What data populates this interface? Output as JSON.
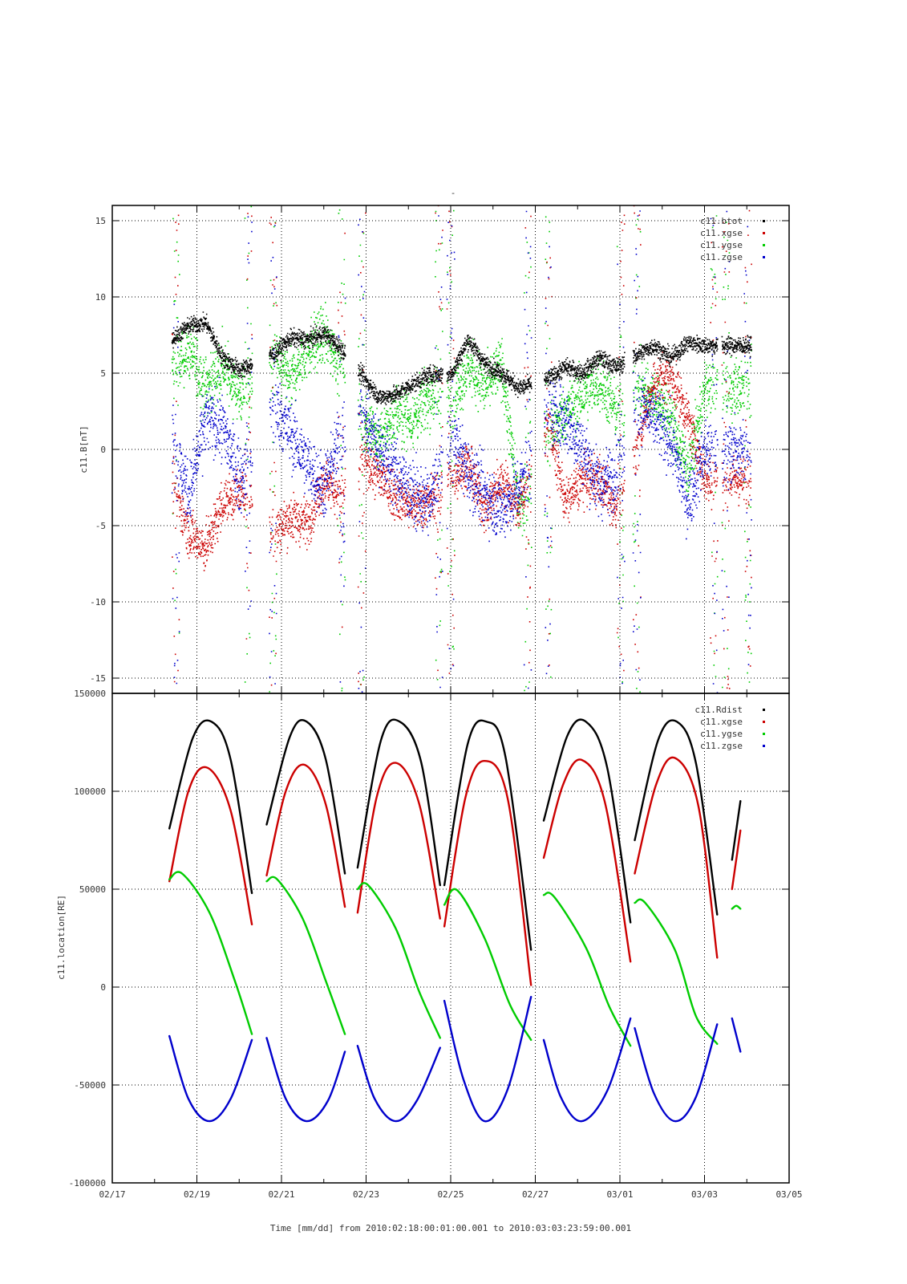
{
  "figure": {
    "title": "-",
    "xlabel": "Time [mm/dd]  from 2010:02:18:00:01:00.001  to  2010:03:03:23:59:00.001",
    "x_tick_labels": [
      "02/17",
      "02/19",
      "02/21",
      "02/23",
      "02/25",
      "02/27",
      "03/01",
      "03/03",
      "03/05"
    ]
  },
  "chart_data": [
    {
      "type": "scatter",
      "title": "-",
      "xlabel": "Time [mm/dd]",
      "ylabel": "c11.B[nT]",
      "x_unit": "day of 2010 from 02/17 00:00",
      "xlim": [
        "02/17",
        "03/05"
      ],
      "ylim": [
        -16,
        16
      ],
      "y_ticks": [
        -15,
        -10,
        -5,
        0,
        5,
        10,
        15
      ],
      "grid": true,
      "legend_position": "top-right",
      "orbit_segments": [
        [
          1.4,
          3.3
        ],
        [
          3.7,
          5.5
        ],
        [
          5.8,
          7.8
        ],
        [
          7.9,
          9.9
        ],
        [
          10.2,
          12.1
        ],
        [
          12.3,
          14.3
        ],
        [
          14.4,
          15.1
        ]
      ],
      "series": [
        {
          "name": "c11.btot",
          "color": "#000000",
          "x": [
            1.4,
            1.8,
            2.2,
            2.6,
            3.0,
            3.8,
            4.2,
            4.6,
            5.0,
            5.4,
            5.9,
            6.3,
            6.7,
            7.1,
            7.5,
            8.0,
            8.4,
            8.8,
            9.2,
            9.6,
            10.3,
            10.7,
            11.1,
            11.5,
            11.9,
            12.4,
            12.8,
            13.2,
            13.6,
            14.0
          ],
          "values": [
            7.2,
            8.1,
            8.3,
            6.0,
            5.2,
            6.2,
            7.3,
            7.2,
            7.6,
            6.6,
            4.8,
            3.4,
            3.6,
            4.3,
            4.9,
            4.9,
            7.2,
            5.6,
            5.0,
            4.0,
            4.6,
            5.4,
            5.0,
            6.0,
            5.4,
            6.2,
            6.8,
            6.0,
            7.0,
            6.8
          ]
        },
        {
          "name": "c11.xgse",
          "color": "#cc0000",
          "x": [
            1.4,
            1.8,
            2.2,
            2.6,
            3.0,
            3.8,
            4.2,
            4.6,
            5.0,
            5.4,
            5.9,
            6.3,
            6.7,
            7.1,
            7.5,
            8.0,
            8.4,
            8.8,
            9.2,
            9.6,
            10.3,
            10.7,
            11.1,
            11.5,
            11.9,
            12.4,
            12.8,
            13.2,
            13.6,
            14.0
          ],
          "values": [
            -2.0,
            -5.5,
            -6.5,
            -3.5,
            -2.8,
            -5.5,
            -4.5,
            -4.8,
            -2.0,
            -3.0,
            -0.5,
            -1.8,
            -3.0,
            -3.8,
            -3.4,
            -1.8,
            -1.0,
            -4.0,
            -2.0,
            -3.8,
            1.8,
            -3.5,
            -2.0,
            -2.0,
            -4.0,
            0.5,
            4.5,
            4.8,
            2.0,
            -2.0
          ]
        },
        {
          "name": "c11.ygse",
          "color": "#00cc00",
          "x": [
            1.4,
            1.8,
            2.2,
            2.6,
            3.0,
            3.8,
            4.2,
            4.6,
            5.0,
            5.4,
            5.9,
            6.3,
            6.7,
            7.1,
            7.5,
            8.0,
            8.4,
            8.8,
            9.2,
            9.6,
            10.3,
            10.7,
            11.1,
            11.5,
            11.9,
            12.4,
            12.8,
            13.2,
            13.6,
            14.0
          ],
          "values": [
            5.0,
            6.5,
            4.0,
            5.5,
            3.5,
            6.0,
            4.5,
            6.5,
            7.5,
            5.5,
            2.0,
            0.5,
            2.5,
            2.0,
            3.5,
            3.0,
            5.5,
            4.0,
            5.5,
            -4.0,
            1.0,
            2.5,
            3.5,
            4.5,
            2.5,
            4.0,
            3.5,
            2.0,
            -1.5,
            4.0
          ]
        },
        {
          "name": "c11.zgse",
          "color": "#0000cc",
          "x": [
            1.4,
            1.8,
            2.2,
            2.6,
            3.0,
            3.8,
            4.2,
            4.6,
            5.0,
            5.4,
            5.9,
            6.3,
            6.7,
            7.1,
            7.5,
            8.0,
            8.4,
            8.8,
            9.2,
            9.6,
            10.3,
            10.7,
            11.1,
            11.5,
            11.9,
            12.4,
            12.8,
            13.2,
            13.6,
            14.0
          ],
          "values": [
            0.5,
            -3.0,
            2.0,
            1.5,
            -2.0,
            3.0,
            1.0,
            -1.0,
            -2.5,
            1.0,
            2.5,
            0.0,
            -1.5,
            -3.0,
            -3.5,
            1.0,
            -1.5,
            -3.0,
            -4.0,
            -2.5,
            2.5,
            2.0,
            0.0,
            -2.5,
            -1.5,
            3.0,
            2.0,
            0.5,
            -3.5,
            0.0
          ]
        }
      ]
    },
    {
      "type": "line",
      "xlabel": "Time [mm/dd]  from 2010:02:18:00:01:00.001  to  2010:03:03:23:59:00.001",
      "ylabel": "c11.location[RE]",
      "x_unit": "day of 2010 from 02/17 00:00",
      "xlim": [
        "02/17",
        "03/05"
      ],
      "ylim": [
        -100000,
        150000
      ],
      "y_ticks": [
        -100000,
        -50000,
        0,
        50000,
        100000,
        150000
      ],
      "grid": true,
      "legend_position": "top-right",
      "series": [
        {
          "name": "c11.Rdist",
          "color": "#000000",
          "segments": [
            {
              "x": [
                1.35,
                1.9,
                2.35,
                2.8,
                3.3
              ],
              "values": [
                81000,
                127000,
                135500,
                116000,
                48000
              ]
            },
            {
              "x": [
                3.65,
                4.2,
                4.6,
                5.05,
                5.5
              ],
              "values": [
                83000,
                128000,
                135500,
                116000,
                58000
              ]
            },
            {
              "x": [
                5.8,
                6.35,
                6.8,
                7.3,
                7.75
              ],
              "values": [
                61000,
                126000,
                135500,
                115000,
                52000
              ]
            },
            {
              "x": [
                7.85,
                8.4,
                8.85,
                9.3,
                9.9
              ],
              "values": [
                52000,
                124000,
                135500,
                117000,
                19000
              ]
            },
            {
              "x": [
                10.2,
                10.75,
                11.2,
                11.7,
                12.25
              ],
              "values": [
                85000,
                128000,
                135500,
                112000,
                33000
              ]
            },
            {
              "x": [
                12.35,
                12.9,
                13.35,
                13.8,
                14.3
              ],
              "values": [
                75000,
                126000,
                135500,
                114000,
                37000
              ]
            },
            {
              "x": [
                14.65,
                14.85
              ],
              "values": [
                65000,
                95000
              ]
            }
          ]
        },
        {
          "name": "c11.xgse",
          "color": "#cc0000",
          "segments": [
            {
              "x": [
                1.35,
                1.8,
                2.25,
                2.8,
                3.3
              ],
              "values": [
                54000,
                100000,
                112000,
                90000,
                32000
              ]
            },
            {
              "x": [
                3.65,
                4.1,
                4.55,
                5.05,
                5.5
              ],
              "values": [
                57000,
                100000,
                113500,
                93000,
                41000
              ]
            },
            {
              "x": [
                5.8,
                6.25,
                6.7,
                7.25,
                7.75
              ],
              "values": [
                38000,
                97000,
                114500,
                94000,
                35000
              ]
            },
            {
              "x": [
                7.85,
                8.35,
                8.8,
                9.35,
                9.9
              ],
              "values": [
                31000,
                97000,
                115500,
                96000,
                1000
              ]
            },
            {
              "x": [
                10.2,
                10.65,
                11.1,
                11.65,
                12.25
              ],
              "values": [
                66000,
                103000,
                116000,
                94000,
                13000
              ]
            },
            {
              "x": [
                12.35,
                12.85,
                13.3,
                13.85,
                14.3
              ],
              "values": [
                58000,
                103000,
                117000,
                93000,
                15000
              ]
            },
            {
              "x": [
                14.65,
                14.85
              ],
              "values": [
                50000,
                80000
              ]
            }
          ]
        },
        {
          "name": "c11.ygse",
          "color": "#00cc00",
          "segments": [
            {
              "x": [
                1.35,
                1.65,
                2.3,
                2.9,
                3.3
              ],
              "values": [
                55000,
                58000,
                38000,
                3000,
                -24000
              ]
            },
            {
              "x": [
                3.65,
                3.9,
                4.5,
                5.05,
                5.5
              ],
              "values": [
                54000,
                55000,
                35000,
                3000,
                -24000
              ]
            },
            {
              "x": [
                5.8,
                6.05,
                6.7,
                7.25,
                7.75
              ],
              "values": [
                50000,
                52000,
                30000,
                -2000,
                -26000
              ]
            },
            {
              "x": [
                7.85,
                8.15,
                8.8,
                9.4,
                9.9
              ],
              "values": [
                42000,
                49500,
                25000,
                -9000,
                -27000
              ]
            },
            {
              "x": [
                10.2,
                10.45,
                11.2,
                11.75,
                12.25
              ],
              "values": [
                47000,
                46000,
                20000,
                -10000,
                -30000
              ]
            },
            {
              "x": [
                12.35,
                12.6,
                13.3,
                13.8,
                14.3
              ],
              "values": [
                43000,
                43000,
                19000,
                -15000,
                -29000
              ]
            },
            {
              "x": [
                14.65,
                14.75,
                14.85
              ],
              "values": [
                40000,
                41500,
                40000
              ]
            }
          ]
        },
        {
          "name": "c11.zgse",
          "color": "#0000cc",
          "segments": [
            {
              "x": [
                1.35,
                1.8,
                2.3,
                2.8,
                3.3
              ],
              "values": [
                -25000,
                -57000,
                -68500,
                -57000,
                -27000
              ]
            },
            {
              "x": [
                3.65,
                4.1,
                4.6,
                5.1,
                5.5
              ],
              "values": [
                -26000,
                -57000,
                -68500,
                -58000,
                -33000
              ]
            },
            {
              "x": [
                5.8,
                6.2,
                6.7,
                7.2,
                7.75
              ],
              "values": [
                -30000,
                -57000,
                -68500,
                -58000,
                -31000
              ]
            },
            {
              "x": [
                7.85,
                8.3,
                8.8,
                9.35,
                9.9
              ],
              "values": [
                -7000,
                -47000,
                -68500,
                -52000,
                -5000
              ]
            },
            {
              "x": [
                10.2,
                10.6,
                11.1,
                11.7,
                12.25
              ],
              "values": [
                -27000,
                -56000,
                -68500,
                -53000,
                -16000
              ]
            },
            {
              "x": [
                12.35,
                12.8,
                13.3,
                13.8,
                14.3
              ],
              "values": [
                -21000,
                -54000,
                -68500,
                -56000,
                -19000
              ]
            },
            {
              "x": [
                14.65,
                14.85
              ],
              "values": [
                -16000,
                -33000
              ]
            }
          ]
        }
      ]
    }
  ]
}
